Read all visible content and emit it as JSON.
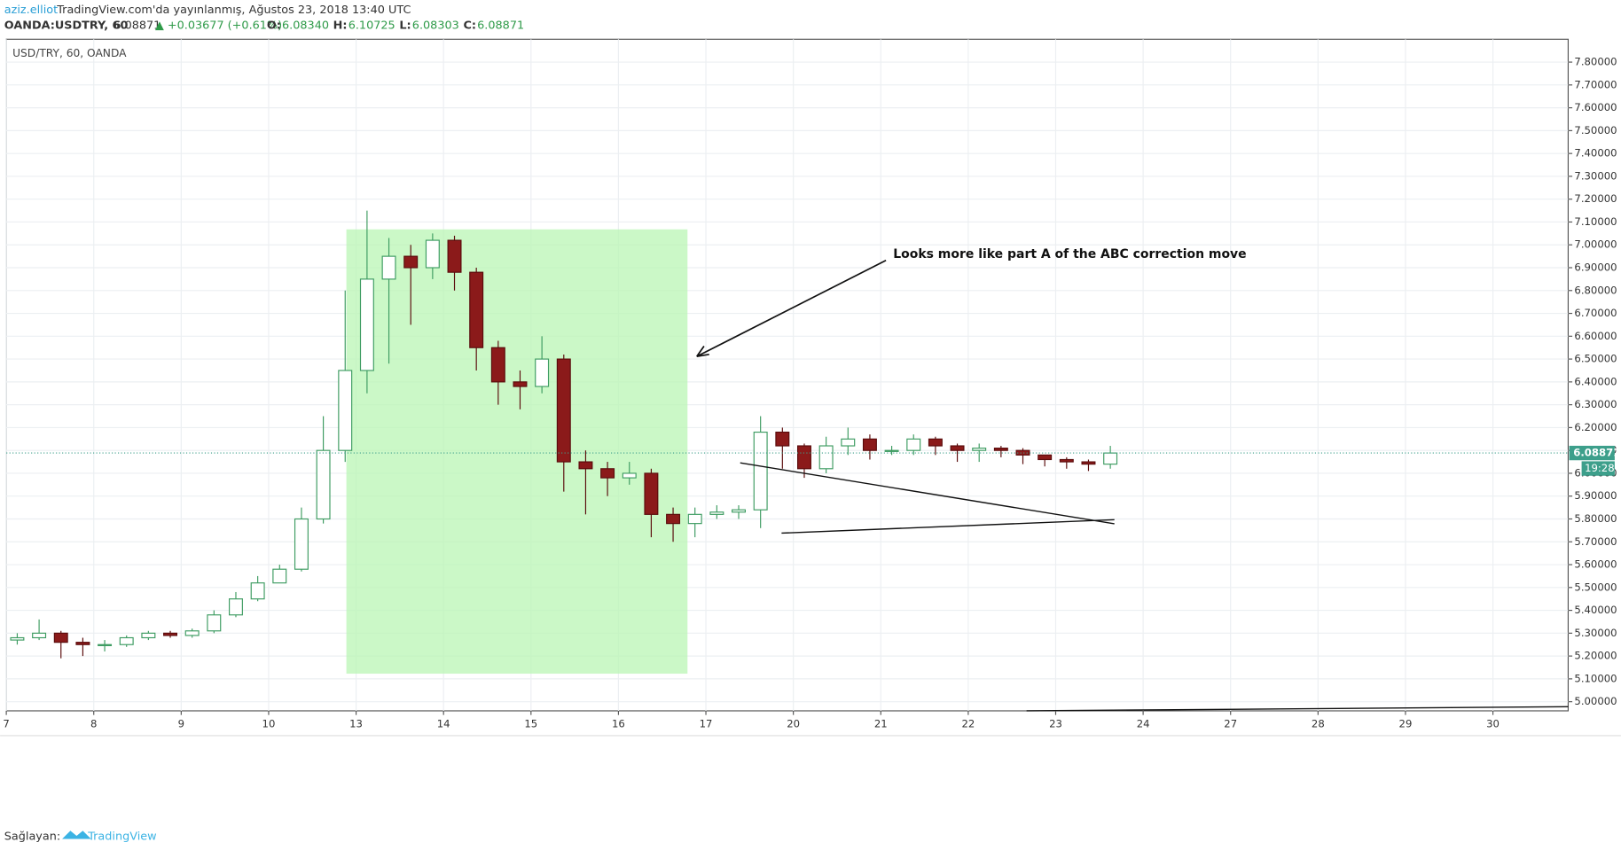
{
  "header": {
    "author": "aziz.elliot",
    "published": "TradingView.com'da yayınlanmış, Ağustos 23, 2018 13:40 UTC",
    "symbol": "OANDA:USDTRY, 60",
    "last": "6.08871",
    "change": "▲ +0.03677 (+0.61%)",
    "ohlc": [
      {
        "key": "O:",
        "value": "6.08340"
      },
      {
        "key": "H:",
        "value": "6.10725"
      },
      {
        "key": "L:",
        "value": "6.08303"
      },
      {
        "key": "C:",
        "value": "6.08871"
      }
    ]
  },
  "chart_data": {
    "type": "candlestick",
    "legend": "USD/TRY, 60, OANDA",
    "annotation": "Looks more like part A of the ABC correction move",
    "categories": [
      "7",
      null,
      null,
      null,
      "8",
      null,
      null,
      null,
      "9",
      null,
      null,
      null,
      "10",
      null,
      null,
      null,
      "13",
      null,
      null,
      null,
      "14",
      null,
      null,
      null,
      "15",
      null,
      null,
      null,
      "16",
      null,
      null,
      null,
      "17",
      null,
      null,
      null,
      "20",
      null,
      null,
      null,
      "21",
      null,
      null,
      null,
      "22",
      null,
      null,
      null,
      "23",
      null,
      null,
      null,
      "24",
      null,
      null,
      null,
      "27",
      null,
      null,
      null,
      "28",
      null,
      null,
      null,
      "29",
      null,
      null,
      null,
      "30",
      null,
      null,
      null
    ],
    "open": [
      5.27,
      5.28,
      5.3,
      5.26,
      5.25,
      5.25,
      5.28,
      5.3,
      5.29,
      5.31,
      5.38,
      5.45,
      5.52,
      5.58,
      5.8,
      6.1,
      6.45,
      6.85,
      6.95,
      6.9,
      7.02,
      6.88,
      6.55,
      6.4,
      6.38,
      6.5,
      6.05,
      6.02,
      5.98,
      6.0,
      5.82,
      5.78,
      5.82,
      5.83,
      5.84,
      6.18,
      6.12,
      6.02,
      6.12,
      6.15,
      6.1,
      6.1,
      6.15,
      6.12,
      6.1,
      6.11,
      6.1,
      6.08,
      6.06,
      6.05,
      6.04,
      null,
      null,
      null,
      null,
      null,
      null,
      null,
      null,
      null,
      null,
      null,
      null,
      null,
      null,
      null,
      null,
      null,
      null,
      null,
      null,
      null
    ],
    "high": [
      5.3,
      5.36,
      5.31,
      5.28,
      5.27,
      5.29,
      5.31,
      5.31,
      5.32,
      5.4,
      5.48,
      5.55,
      5.6,
      5.85,
      6.25,
      6.8,
      7.15,
      7.03,
      7.0,
      7.05,
      7.04,
      6.9,
      6.58,
      6.45,
      6.6,
      6.52,
      6.1,
      6.05,
      6.05,
      6.02,
      5.85,
      5.85,
      5.86,
      5.86,
      6.25,
      6.2,
      6.13,
      6.16,
      6.2,
      6.17,
      6.12,
      6.17,
      6.16,
      6.13,
      6.13,
      6.12,
      6.11,
      6.08,
      6.07,
      6.06,
      6.12,
      null,
      null,
      null,
      null,
      null,
      null,
      null,
      null,
      null,
      null,
      null,
      null,
      null,
      null,
      null,
      null,
      null,
      null,
      null,
      null,
      null
    ],
    "low": [
      5.25,
      5.27,
      5.19,
      5.2,
      5.22,
      5.24,
      5.27,
      5.28,
      5.28,
      5.3,
      5.37,
      5.44,
      5.52,
      5.57,
      5.78,
      6.05,
      6.35,
      6.48,
      6.65,
      6.85,
      6.8,
      6.45,
      6.3,
      6.28,
      6.35,
      5.92,
      5.82,
      5.9,
      5.95,
      5.72,
      5.7,
      5.72,
      5.8,
      5.8,
      5.76,
      6.02,
      5.98,
      6.0,
      6.08,
      6.06,
      6.08,
      6.08,
      6.08,
      6.05,
      6.05,
      6.07,
      6.04,
      6.03,
      6.02,
      6.01,
      6.02,
      null,
      null,
      null,
      null,
      null,
      null,
      null,
      null,
      null,
      null,
      null,
      null,
      null,
      null,
      null,
      null,
      null,
      null,
      null,
      null,
      null
    ],
    "close": [
      5.28,
      5.3,
      5.26,
      5.25,
      5.25,
      5.28,
      5.3,
      5.29,
      5.31,
      5.38,
      5.45,
      5.52,
      5.58,
      5.8,
      6.1,
      6.45,
      6.85,
      6.95,
      6.9,
      7.02,
      6.88,
      6.55,
      6.4,
      6.38,
      6.5,
      6.05,
      6.02,
      5.98,
      6.0,
      5.82,
      5.78,
      5.82,
      5.83,
      5.84,
      6.18,
      6.12,
      6.02,
      6.12,
      6.15,
      6.1,
      6.1,
      6.15,
      6.12,
      6.1,
      6.11,
      6.1,
      6.08,
      6.06,
      6.05,
      6.04,
      6.08871,
      null,
      null,
      null,
      null,
      null,
      null,
      null,
      null,
      null,
      null,
      null,
      null,
      null,
      null,
      null,
      null,
      null,
      null,
      null,
      null,
      null
    ],
    "up_color": "#ffffff",
    "up_border": "#3e9c62",
    "down_color": "#8b1a1a",
    "down_border": "#5a0c0c",
    "price_line": {
      "value": 6.08871,
      "label": "6.08871",
      "countdown": "19:28",
      "color": "#3d9f8b"
    },
    "ylim": [
      4.96,
      7.9
    ],
    "yticks": [
      {
        "value": 5.0,
        "label": "5.00000"
      },
      {
        "value": 5.1,
        "label": "5.10000"
      },
      {
        "value": 5.2,
        "label": "5.20000"
      },
      {
        "value": 5.3,
        "label": "5.30000"
      },
      {
        "value": 5.4,
        "label": "5.40000"
      },
      {
        "value": 5.5,
        "label": "5.50000"
      },
      {
        "value": 5.6,
        "label": "5.60000"
      },
      {
        "value": 5.7,
        "label": "5.70000"
      },
      {
        "value": 5.8,
        "label": "5.80000"
      },
      {
        "value": 5.9,
        "label": "5.90000"
      },
      {
        "value": 6.0,
        "label": "6.00000"
      },
      {
        "value": 6.1,
        "label": "6.10000"
      },
      {
        "value": 6.2,
        "label": "6.20000"
      },
      {
        "value": 6.3,
        "label": "6.30000"
      },
      {
        "value": 6.4,
        "label": "6.40000"
      },
      {
        "value": 6.5,
        "label": "6.50000"
      },
      {
        "value": 6.6,
        "label": "6.60000"
      },
      {
        "value": 6.7,
        "label": "6.70000"
      },
      {
        "value": 6.8,
        "label": "6.80000"
      },
      {
        "value": 6.9,
        "label": "6.90000"
      },
      {
        "value": 7.0,
        "label": "7.00000"
      },
      {
        "value": 7.1,
        "label": "7.10000"
      },
      {
        "value": 7.2,
        "label": "7.20000"
      },
      {
        "value": 7.3,
        "label": "7.30000"
      },
      {
        "value": 7.4,
        "label": "7.40000"
      },
      {
        "value": 7.5,
        "label": "7.50000"
      },
      {
        "value": 7.6,
        "label": "7.60000"
      },
      {
        "value": 7.7,
        "label": "7.70000"
      },
      {
        "value": 7.8,
        "label": "7.80000"
      }
    ],
    "grid": true
  },
  "footer": {
    "provider": "Sağlayan:",
    "brand": "TradingView"
  }
}
